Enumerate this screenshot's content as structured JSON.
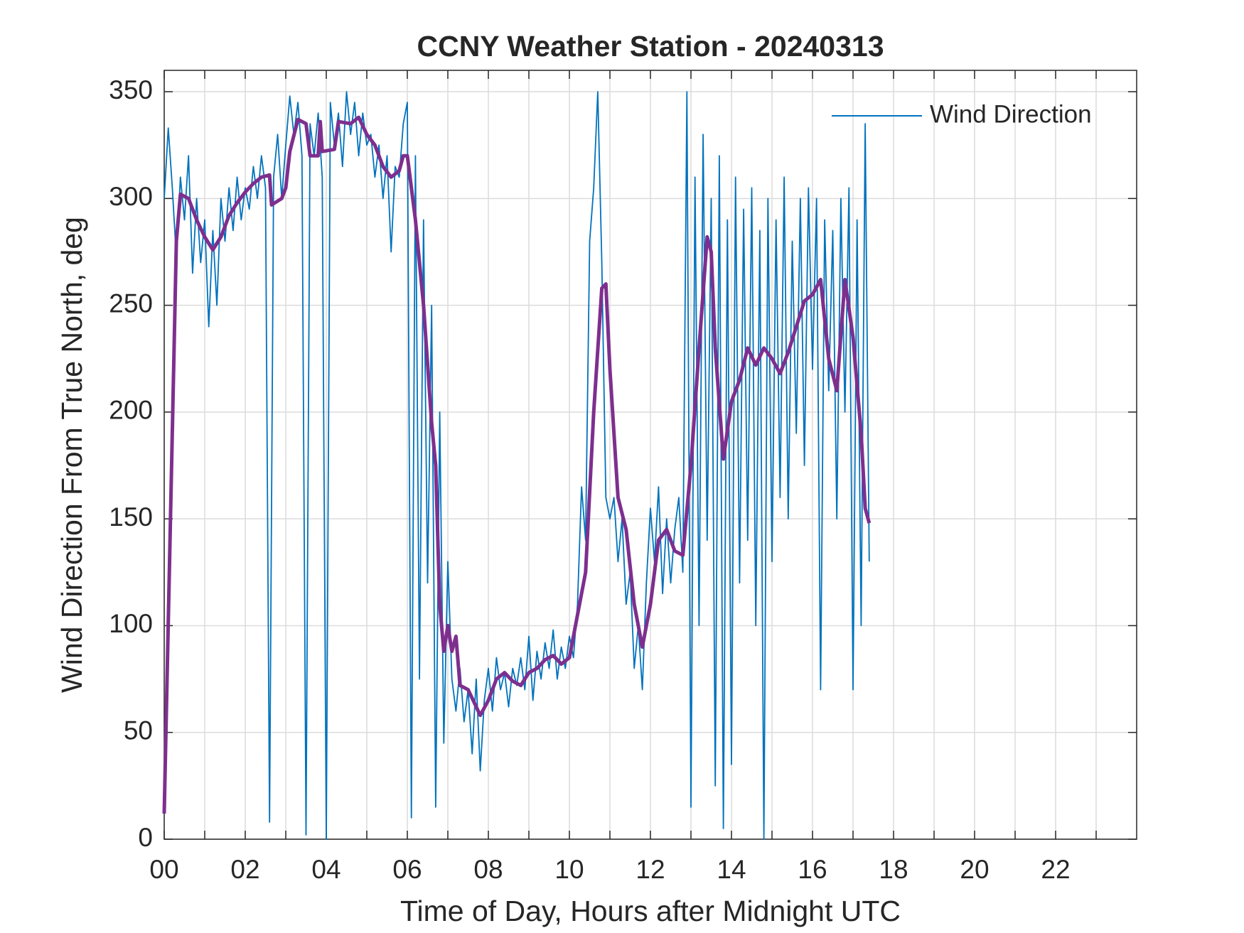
{
  "chart_data": {
    "type": "line",
    "title": "CCNY Weather Station - 20240313",
    "xlabel": "Time of Day, Hours after Midnight UTC",
    "ylabel": "Wind Direction From True North, deg",
    "xlim": [
      0,
      24
    ],
    "ylim": [
      0,
      360
    ],
    "xticks": [
      {
        "value": 0,
        "label": "00"
      },
      {
        "value": 2,
        "label": "02"
      },
      {
        "value": 4,
        "label": "04"
      },
      {
        "value": 6,
        "label": "06"
      },
      {
        "value": 8,
        "label": "08"
      },
      10,
      12,
      14,
      16,
      18,
      20,
      22
    ],
    "xminor_ticks": [
      1,
      3,
      5,
      7,
      9,
      11,
      13,
      15,
      17,
      19,
      21,
      23
    ],
    "yticks": [
      0,
      50,
      100,
      150,
      200,
      250,
      300,
      350
    ],
    "grid": true,
    "legend": "northeast",
    "series": [
      {
        "name": "Wind Direction",
        "color": "#0072bd",
        "x": [
          0,
          0.1,
          0.2,
          0.3,
          0.4,
          0.5,
          0.6,
          0.7,
          0.8,
          0.9,
          1,
          1.1,
          1.2,
          1.3,
          1.4,
          1.5,
          1.6,
          1.7,
          1.8,
          1.9,
          2,
          2.1,
          2.2,
          2.3,
          2.4,
          2.5,
          2.6,
          2.7,
          2.8,
          2.9,
          3,
          3.1,
          3.2,
          3.3,
          3.4,
          3.5,
          3.6,
          3.7,
          3.8,
          3.9,
          4,
          4.1,
          4.2,
          4.3,
          4.4,
          4.5,
          4.6,
          4.7,
          4.8,
          4.9,
          5,
          5.1,
          5.2,
          5.3,
          5.4,
          5.5,
          5.6,
          5.7,
          5.8,
          5.9,
          6,
          6.1,
          6.2,
          6.3,
          6.4,
          6.5,
          6.6,
          6.7,
          6.8,
          6.9,
          7,
          7.1,
          7.2,
          7.3,
          7.4,
          7.5,
          7.6,
          7.7,
          7.8,
          7.9,
          8,
          8.1,
          8.2,
          8.3,
          8.4,
          8.5,
          8.6,
          8.7,
          8.8,
          8.9,
          9,
          9.1,
          9.2,
          9.3,
          9.4,
          9.5,
          9.6,
          9.7,
          9.8,
          9.9,
          10,
          10.1,
          10.2,
          10.3,
          10.4,
          10.5,
          10.6,
          10.7,
          10.8,
          10.9,
          11,
          11.1,
          11.2,
          11.3,
          11.4,
          11.5,
          11.6,
          11.7,
          11.8,
          11.9,
          12,
          12.1,
          12.2,
          12.3,
          12.4,
          12.5,
          12.6,
          12.7,
          12.8,
          12.9,
          13,
          13.1,
          13.2,
          13.3,
          13.4,
          13.5,
          13.6,
          13.7,
          13.8,
          13.9,
          14,
          14.1,
          14.2,
          14.3,
          14.4,
          14.5,
          14.6,
          14.7,
          14.8,
          14.9,
          15,
          15.1,
          15.2,
          15.3,
          15.4,
          15.5,
          15.6,
          15.7,
          15.8,
          15.9,
          16,
          16.1,
          16.2,
          16.3,
          16.4,
          16.5,
          16.6,
          16.7,
          16.8,
          16.9,
          17,
          17.1,
          17.2,
          17.3,
          17.4
        ],
        "values": [
          300,
          333,
          305,
          272,
          310,
          290,
          320,
          265,
          300,
          270,
          290,
          240,
          285,
          250,
          300,
          280,
          305,
          285,
          310,
          290,
          305,
          295,
          315,
          300,
          320,
          305,
          8,
          310,
          330,
          300,
          325,
          348,
          330,
          345,
          320,
          2,
          335,
          320,
          340,
          310,
          0,
          345,
          325,
          340,
          315,
          350,
          330,
          345,
          320,
          340,
          325,
          330,
          310,
          325,
          300,
          320,
          275,
          315,
          310,
          335,
          345,
          10,
          320,
          75,
          290,
          120,
          250,
          15,
          200,
          45,
          130,
          75,
          60,
          80,
          55,
          70,
          40,
          75,
          32,
          65,
          80,
          60,
          85,
          70,
          78,
          62,
          80,
          72,
          85,
          70,
          95,
          65,
          88,
          75,
          92,
          80,
          98,
          75,
          90,
          80,
          95,
          85,
          110,
          165,
          140,
          280,
          305,
          350,
          270,
          160,
          150,
          160,
          130,
          150,
          110,
          125,
          80,
          100,
          70,
          120,
          155,
          130,
          165,
          115,
          150,
          120,
          145,
          160,
          125,
          350,
          15,
          310,
          100,
          330,
          140,
          300,
          25,
          320,
          5,
          290,
          35,
          310,
          120,
          295,
          140,
          305,
          100,
          285,
          0,
          300,
          130,
          290,
          160,
          310,
          150,
          280,
          190,
          300,
          175,
          305,
          220,
          300,
          70,
          290,
          210,
          285,
          150,
          300,
          200,
          305,
          70,
          290,
          100,
          335,
          130
        ]
      },
      {
        "color": "#7e2f8e",
        "x": [
          0,
          0.3,
          0.4,
          0.6,
          0.8,
          1,
          1.2,
          1.4,
          1.6,
          1.8,
          2,
          2.2,
          2.4,
          2.6,
          2.65,
          2.9,
          3,
          3.1,
          3.3,
          3.5,
          3.6,
          3.8,
          3.85,
          3.9,
          4.2,
          4.3,
          4.6,
          4.8,
          5,
          5.2,
          5.4,
          5.6,
          5.8,
          5.9,
          6,
          6.2,
          6.4,
          6.6,
          6.7,
          6.8,
          6.9,
          7,
          7.1,
          7.2,
          7.3,
          7.5,
          7.7,
          7.8,
          8,
          8.2,
          8.4,
          8.6,
          8.8,
          9,
          9.2,
          9.4,
          9.6,
          9.8,
          10,
          10.2,
          10.4,
          10.6,
          10.8,
          10.9,
          11,
          11.2,
          11.4,
          11.6,
          11.8,
          12,
          12.2,
          12.4,
          12.6,
          12.8,
          13,
          13.2,
          13.4,
          13.5,
          13.6,
          13.8,
          14,
          14.2,
          14.4,
          14.6,
          14.8,
          15,
          15.2,
          15.4,
          15.6,
          15.8,
          16,
          16.2,
          16.4,
          16.6,
          16.8,
          17,
          17.2,
          17.3,
          17.4
        ],
        "values": [
          12,
          280,
          302,
          300,
          290,
          282,
          276,
          282,
          292,
          298,
          303,
          307,
          310,
          311,
          297,
          300,
          305,
          322,
          337,
          335,
          320,
          320,
          336,
          322,
          323,
          336,
          335,
          338,
          330,
          325,
          315,
          310,
          313,
          320,
          320,
          290,
          250,
          195,
          175,
          110,
          88,
          100,
          88,
          95,
          72,
          70,
          62,
          58,
          65,
          75,
          78,
          74,
          72,
          78,
          80,
          84,
          86,
          82,
          85,
          105,
          125,
          200,
          258,
          260,
          220,
          160,
          145,
          110,
          90,
          110,
          140,
          145,
          135,
          133,
          175,
          230,
          282,
          275,
          230,
          178,
          205,
          215,
          230,
          222,
          230,
          225,
          218,
          228,
          240,
          252,
          255,
          262,
          225,
          210,
          262,
          235,
          190,
          155,
          148
        ]
      }
    ]
  }
}
